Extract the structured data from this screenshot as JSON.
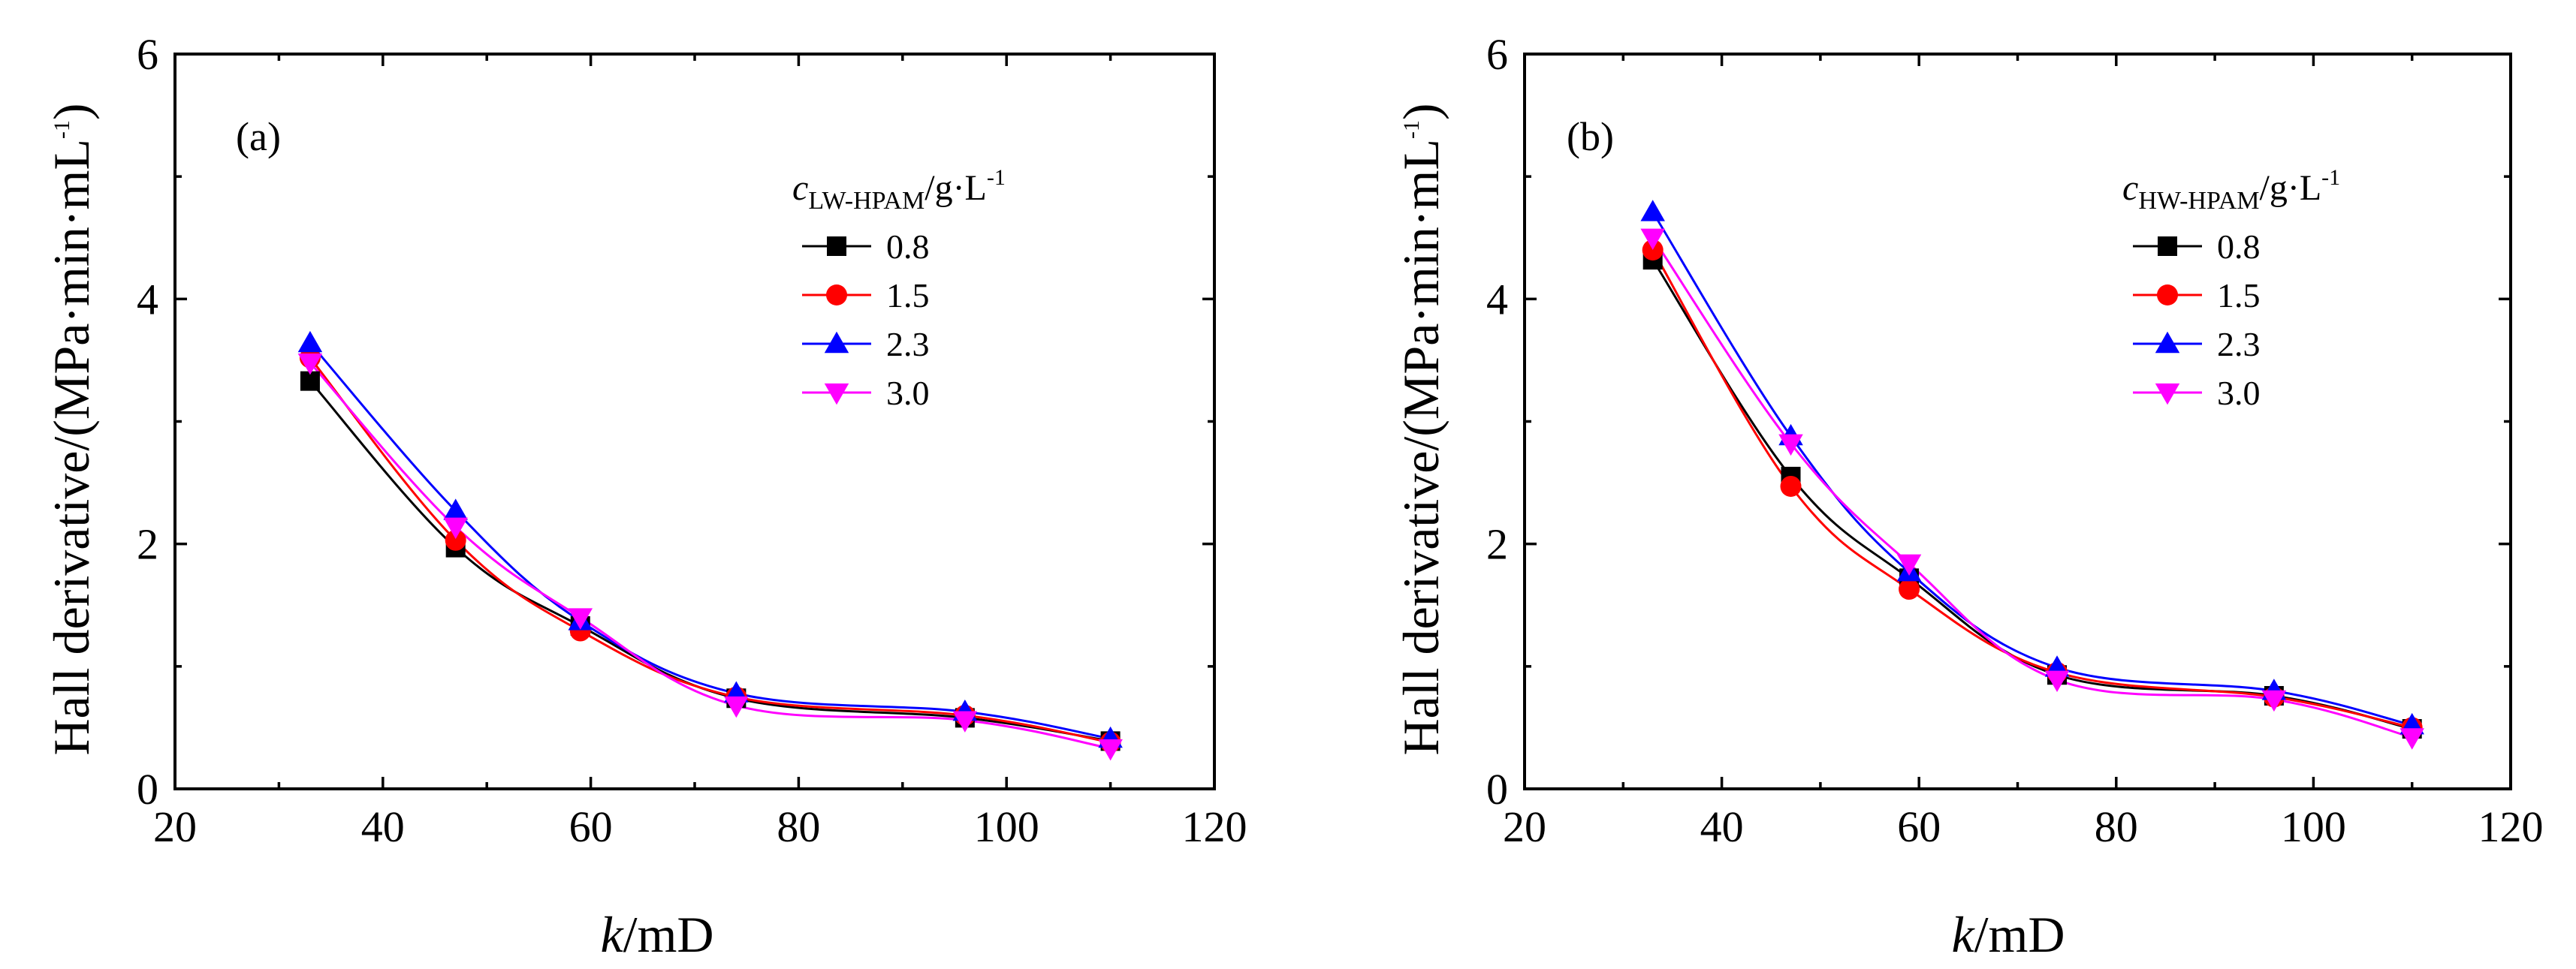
{
  "chart_data": [
    {
      "type": "scatter",
      "panel_label": "(a)",
      "xlabel_italic": "k",
      "xlabel_rest": "/mD",
      "ylabel": "Hall derivative/(MPa·min·mL",
      "ylabel_sup": "-1",
      "ylabel_close": ")",
      "xlim": [
        20,
        120
      ],
      "ylim": [
        0,
        6
      ],
      "xticks": [
        20,
        40,
        60,
        80,
        100,
        120
      ],
      "yticks": [
        0,
        2,
        4,
        6
      ],
      "legend": {
        "title_italic": "c",
        "title_sub": "LW-HPAM",
        "title_rest": "/g·L",
        "title_sup": "-1",
        "position": "top-right"
      },
      "series": [
        {
          "name": "0.8",
          "color": "#000000",
          "marker": "square",
          "x": [
            33,
            47,
            59,
            74,
            96,
            110
          ],
          "y": [
            3.33,
            1.97,
            1.33,
            0.74,
            0.58,
            0.39
          ]
        },
        {
          "name": "1.5",
          "color": "#ff0000",
          "marker": "circle",
          "x": [
            33,
            47,
            59,
            74,
            96,
            110
          ],
          "y": [
            3.52,
            2.03,
            1.29,
            0.75,
            0.6,
            0.38
          ]
        },
        {
          "name": "2.3",
          "color": "#0000ff",
          "marker": "triangle-up",
          "x": [
            33,
            47,
            59,
            74,
            96,
            110
          ],
          "y": [
            3.64,
            2.27,
            1.37,
            0.78,
            0.63,
            0.41
          ]
        },
        {
          "name": "3.0",
          "color": "#ff00ff",
          "marker": "triangle-down",
          "x": [
            33,
            47,
            59,
            74,
            96,
            110
          ],
          "y": [
            3.48,
            2.14,
            1.4,
            0.68,
            0.56,
            0.33
          ]
        }
      ]
    },
    {
      "type": "scatter",
      "panel_label": "(b)",
      "xlabel_italic": "k",
      "xlabel_rest": "/mD",
      "ylabel": "Hall derivative/(MPa·min·mL",
      "ylabel_sup": "-1",
      "ylabel_close": ")",
      "xlim": [
        20,
        120
      ],
      "ylim": [
        0,
        6
      ],
      "xticks": [
        20,
        40,
        60,
        80,
        100,
        120
      ],
      "yticks": [
        0,
        2,
        4,
        6
      ],
      "legend": {
        "title_italic": "c",
        "title_sub": "HW-HPAM",
        "title_rest": "/g·L",
        "title_sup": "-1",
        "position": "top-right"
      },
      "series": [
        {
          "name": "0.8",
          "color": "#000000",
          "marker": "square",
          "x": [
            33,
            47,
            59,
            74,
            96,
            110
          ],
          "y": [
            4.32,
            2.55,
            1.72,
            0.93,
            0.76,
            0.49
          ]
        },
        {
          "name": "1.5",
          "color": "#ff0000",
          "marker": "circle",
          "x": [
            33,
            47,
            59,
            74,
            96,
            110
          ],
          "y": [
            4.4,
            2.47,
            1.63,
            0.95,
            0.75,
            0.5
          ]
        },
        {
          "name": "2.3",
          "color": "#0000ff",
          "marker": "triangle-up",
          "x": [
            33,
            47,
            59,
            74,
            96,
            110
          ],
          "y": [
            4.71,
            2.88,
            1.77,
            0.99,
            0.8,
            0.52
          ]
        },
        {
          "name": "3.0",
          "color": "#ff00ff",
          "marker": "triangle-down",
          "x": [
            33,
            47,
            59,
            74,
            96,
            110
          ],
          "y": [
            4.5,
            2.82,
            1.84,
            0.89,
            0.73,
            0.42
          ]
        }
      ]
    }
  ]
}
